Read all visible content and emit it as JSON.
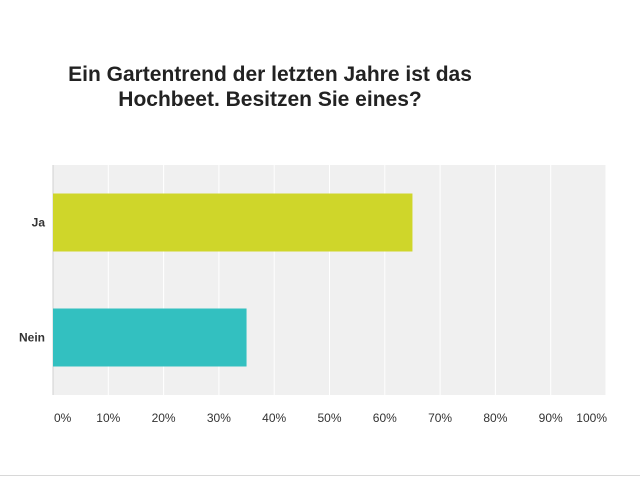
{
  "title_lines": [
    "Ein Gartentrend der letzten Jahre ist das",
    "Hochbeet. Besitzen Sie eines?"
  ],
  "chart_data": {
    "type": "bar",
    "orientation": "horizontal",
    "title": "Ein Gartentrend der letzten Jahre ist das Hochbeet. Besitzen Sie eines?",
    "categories": [
      "Ja",
      "Nein"
    ],
    "values": [
      65,
      35
    ],
    "colors": [
      "#cfd62a",
      "#33c0c0"
    ],
    "xlim": [
      0,
      100
    ],
    "xticks": [
      "0%",
      "10%",
      "20%",
      "30%",
      "40%",
      "50%",
      "60%",
      "70%",
      "80%",
      "90%",
      "100%"
    ],
    "grid": true,
    "background": "#f0f0f0"
  }
}
